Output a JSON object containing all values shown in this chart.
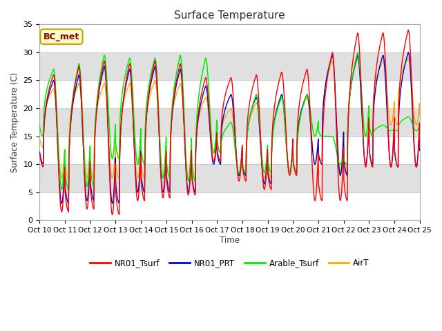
{
  "title": "Surface Temperature",
  "ylabel": "Surface Temperature (C)",
  "xlabel": "Time",
  "ylim": [
    0,
    35
  ],
  "yticks": [
    0,
    5,
    10,
    15,
    20,
    25,
    30,
    35
  ],
  "xtick_labels": [
    "Oct 10",
    "Oct 11",
    "Oct 12",
    "Oct 13",
    "Oct 14",
    "Oct 15",
    "Oct 16",
    "Oct 17",
    "Oct 18",
    "Oct 19",
    "Oct 20",
    "Oct 21",
    "Oct 22",
    "Oct 23",
    "Oct 24",
    "Oct 25"
  ],
  "colors": {
    "NR01_Tsurf": "#ff0000",
    "NR01_PRT": "#0000cc",
    "Arable_Tsurf": "#00ee00",
    "AirT": "#ffa500"
  },
  "bg_color": "#e8e8e8",
  "plot_bg": "#f0f0f0",
  "annotation_text": "BC_met",
  "annotation_bg": "#ffffcc",
  "annotation_border": "#c8a000",
  "peaks_NR01": [
    26.0,
    27.5,
    28.5,
    28.0,
    28.5,
    28.0,
    25.5,
    25.5,
    26.0,
    26.5,
    27.0,
    30.0,
    33.5,
    33.5,
    34.0
  ],
  "troughs_NR01": [
    9.5,
    1.5,
    2.0,
    1.0,
    3.5,
    4.0,
    4.5,
    10.5,
    7.0,
    5.5,
    8.0,
    3.5,
    3.5,
    9.5,
    9.5
  ],
  "peaks_PRT": [
    25.0,
    26.0,
    27.5,
    27.0,
    27.5,
    27.0,
    24.0,
    22.5,
    22.0,
    22.5,
    22.5,
    29.5,
    29.5,
    29.5,
    30.0
  ],
  "troughs_PRT": [
    10.0,
    3.0,
    3.5,
    3.0,
    5.0,
    5.0,
    5.0,
    10.0,
    8.0,
    6.5,
    8.5,
    10.0,
    8.0,
    10.0,
    9.5
  ],
  "peaks_Arable": [
    27.0,
    28.0,
    29.5,
    29.0,
    29.0,
    29.5,
    29.0,
    17.5,
    22.5,
    22.0,
    22.5,
    15.0,
    30.0,
    17.0,
    18.5
  ],
  "troughs_Arable": [
    15.0,
    5.5,
    6.0,
    11.0,
    10.0,
    7.5,
    7.0,
    12.0,
    8.5,
    8.5,
    8.5,
    15.0,
    10.0,
    15.0,
    16.0
  ],
  "peaks_AirT": [
    23.5,
    24.5,
    24.5,
    24.5,
    25.0,
    24.5,
    22.0,
    20.0,
    21.0,
    22.0,
    22.0,
    28.5,
    29.0,
    28.5,
    29.0
  ],
  "troughs_AirT": [
    13.0,
    7.5,
    7.5,
    7.5,
    7.5,
    7.5,
    7.5,
    12.0,
    8.0,
    7.5,
    8.5,
    10.5,
    8.5,
    15.0,
    17.0
  ]
}
